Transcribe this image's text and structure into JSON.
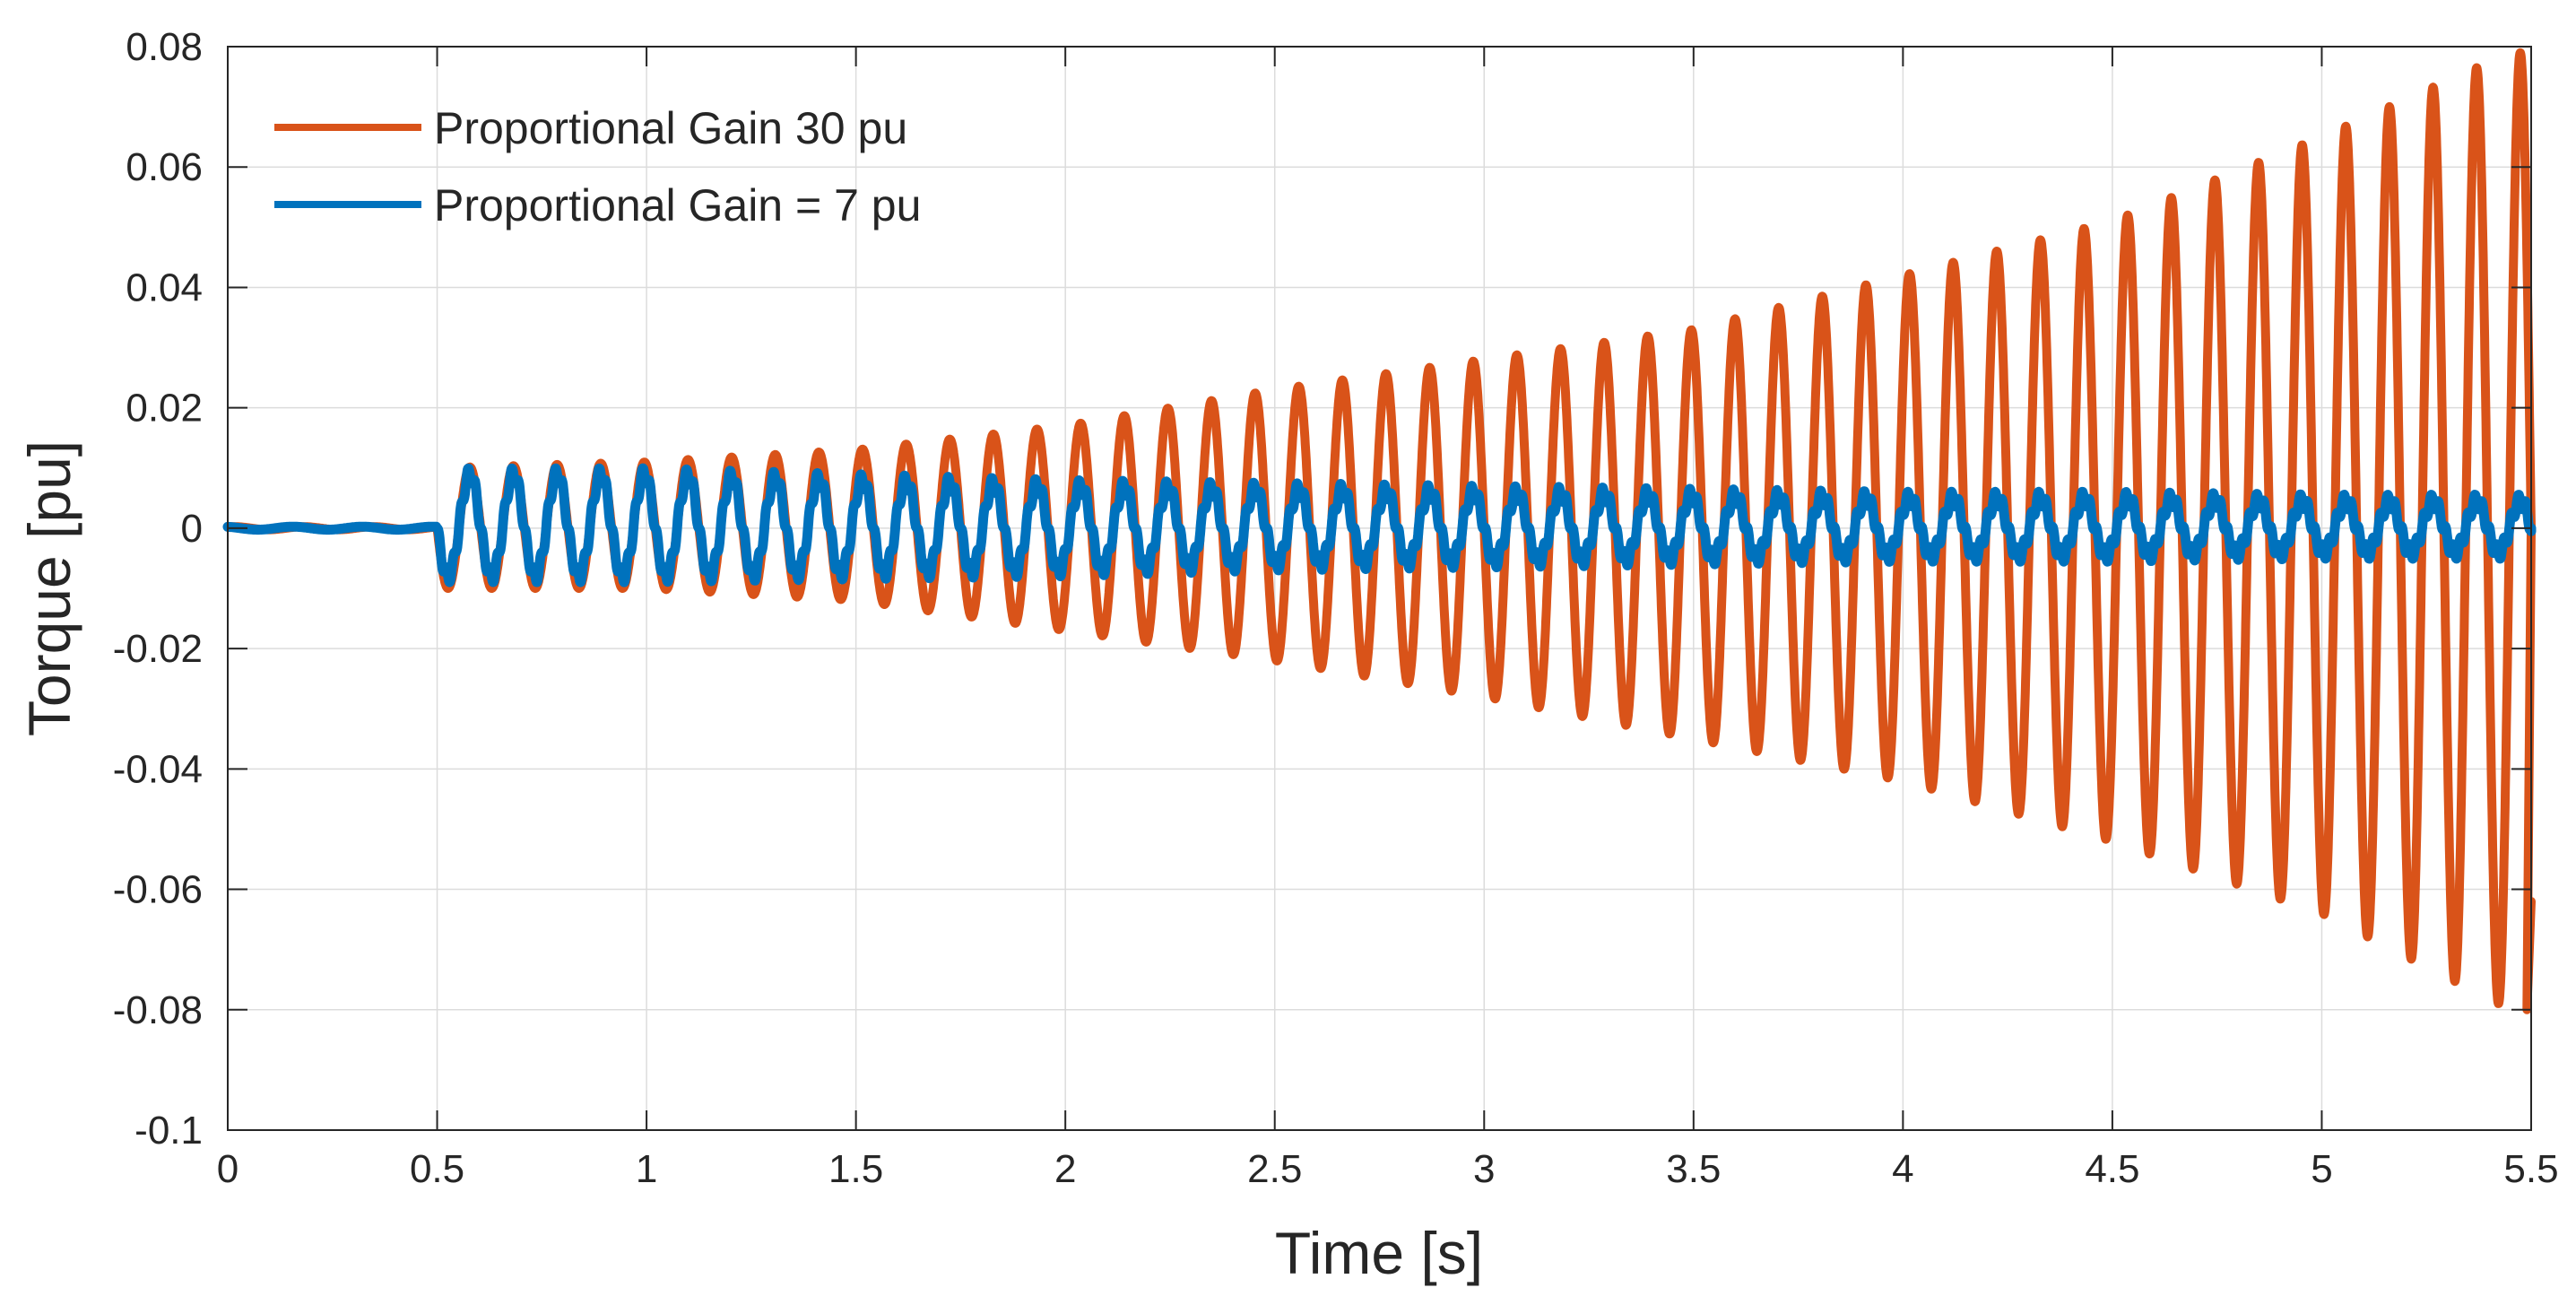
{
  "chart_data": {
    "type": "line",
    "title": "",
    "xlabel": "Time [s]",
    "ylabel": "Torque [pu]",
    "xlim": [
      0,
      5.5
    ],
    "ylim": [
      -0.1,
      0.08
    ],
    "xticks": [
      0,
      0.5,
      1,
      1.5,
      2,
      2.5,
      3,
      3.5,
      4,
      4.5,
      5,
      5.5
    ],
    "xtick_labels": [
      "0",
      "0.5",
      "1",
      "1.5",
      "2",
      "2.5",
      "3",
      "3.5",
      "4",
      "4.5",
      "5",
      "5.5"
    ],
    "yticks": [
      0.08,
      0.06,
      0.04,
      0.02,
      0,
      -0.02,
      -0.04,
      -0.06,
      -0.08,
      -0.1
    ],
    "ytick_labels": [
      "0.08",
      "0.06",
      "0.04",
      "0.02",
      "0",
      "-0.02",
      "-0.04",
      "-0.06",
      "-0.08",
      "-0.1"
    ],
    "grid": true,
    "legend_position": "top-left",
    "disturbance_time": 0.5,
    "end_time": 5.5,
    "series": [
      {
        "name": "Proportional Gain 30 pu",
        "color": "#D95319",
        "oscillation_frequency_hz": 9.6,
        "envelope_t": [
          0.5,
          1.0,
          1.5,
          2.0,
          2.5,
          3.0,
          3.5,
          4.0,
          4.5,
          5.0,
          5.45
        ],
        "envelope_upper": [
          0.01,
          0.011,
          0.013,
          0.017,
          0.023,
          0.028,
          0.033,
          0.042,
          0.051,
          0.065,
          0.079
        ],
        "envelope_lower": [
          -0.01,
          -0.01,
          -0.012,
          -0.017,
          -0.022,
          -0.028,
          -0.035,
          -0.042,
          -0.052,
          -0.064,
          -0.08
        ]
      },
      {
        "name": "Proportional Gain = 7 pu",
        "color": "#0072BD",
        "oscillation_frequency_hz": 9.6,
        "envelope_t": [
          0.5,
          1.0,
          1.5,
          2.0,
          2.5,
          3.0,
          3.5,
          4.0,
          4.5,
          5.0,
          5.5
        ],
        "envelope_upper": [
          0.009,
          0.009,
          0.008,
          0.007,
          0.0065,
          0.006,
          0.0055,
          0.005,
          0.005,
          0.0045,
          0.0045
        ],
        "envelope_lower": [
          -0.008,
          -0.008,
          -0.0075,
          -0.007,
          -0.006,
          -0.0055,
          -0.005,
          -0.0045,
          -0.0045,
          -0.004,
          -0.004
        ]
      }
    ]
  }
}
